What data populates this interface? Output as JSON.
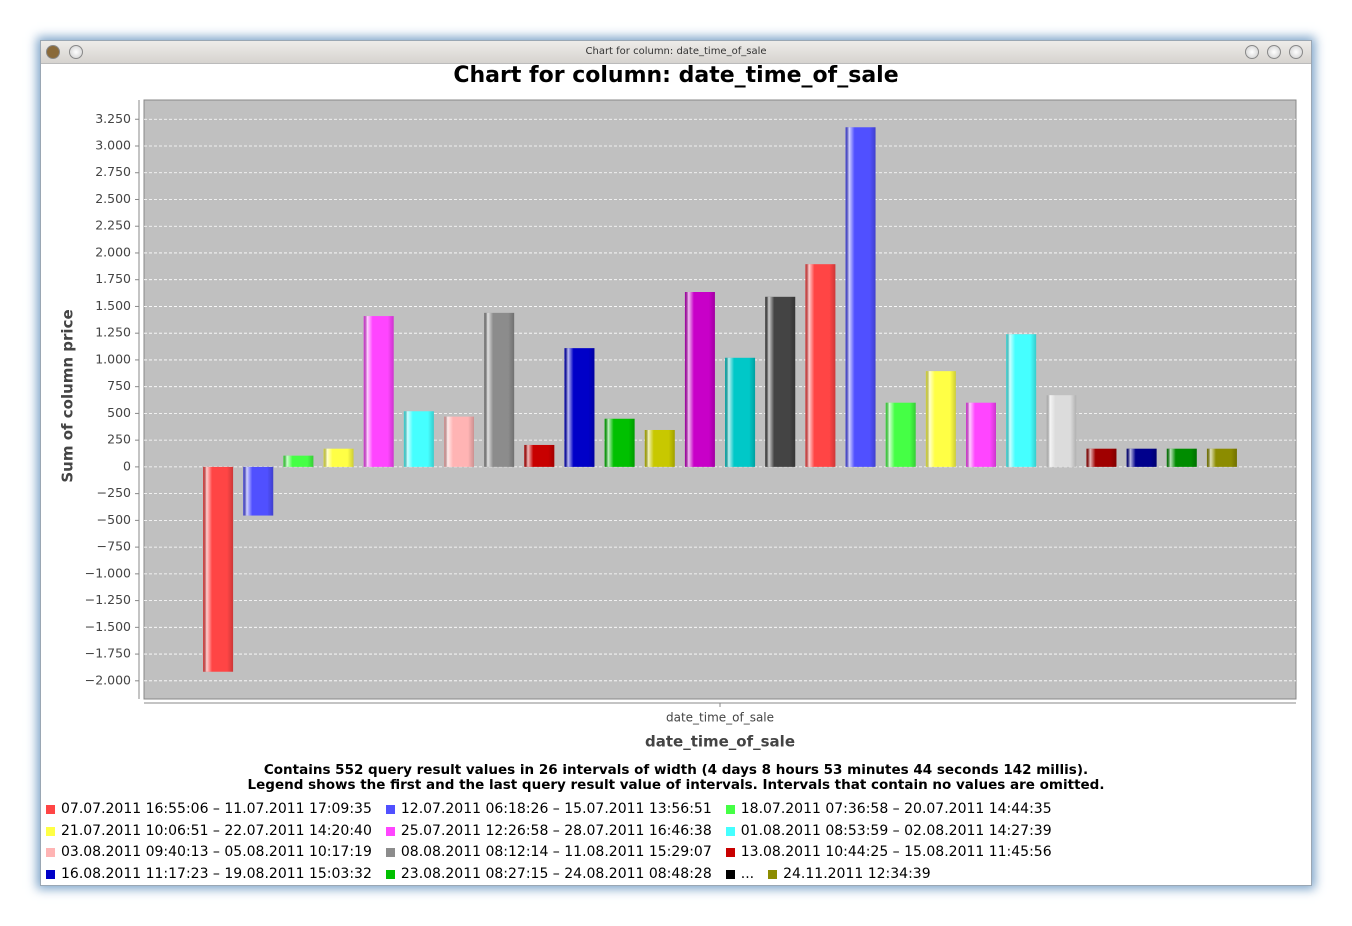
{
  "window": {
    "title": "Chart for column: date_time_of_sale"
  },
  "chart_data": {
    "type": "bar",
    "title": "Chart for column: date_time_of_sale",
    "y_label": "Sum of column price",
    "x_tick_label": "date_time_of_sale",
    "x_label": "date_time_of_sale",
    "categories": [
      null,
      null,
      null,
      null,
      null,
      null,
      null,
      null,
      null,
      null,
      null,
      null,
      null,
      null,
      null,
      null,
      null,
      null,
      null,
      null,
      null,
      null,
      null,
      null,
      null,
      null
    ],
    "values": [
      -1915,
      -455,
      105,
      170,
      1410,
      520,
      470,
      1440,
      205,
      1110,
      450,
      345,
      1635,
      1020,
      1590,
      1895,
      3175,
      600,
      895,
      600,
      1240,
      670,
      170,
      170,
      170,
      170
    ],
    "colors": [
      "#ff4545",
      "#5050ff",
      "#45ff45",
      "#ffff45",
      "#ff45ff",
      "#45ffff",
      "#ffb4b4",
      "#8c8c8c",
      "#c80000",
      "#0000c8",
      "#00c000",
      "#c8c800",
      "#c800c8",
      "#00c8c8",
      "#444444",
      "#ff4545",
      "#5050ff",
      "#45ff45",
      "#ffff45",
      "#ff45ff",
      "#45ffff",
      "#dcdcdc",
      "#a00000",
      "#00008c",
      "#008c00",
      "#8c8c00"
    ],
    "ylim": [
      -2170,
      3430
    ],
    "yticks": [
      {
        "value": 3250,
        "label": "3.250"
      },
      {
        "value": 3000,
        "label": "3.000"
      },
      {
        "value": 2750,
        "label": "2.750"
      },
      {
        "value": 2500,
        "label": "2.500"
      },
      {
        "value": 2250,
        "label": "2.250"
      },
      {
        "value": 2000,
        "label": "2.000"
      },
      {
        "value": 1750,
        "label": "1.750"
      },
      {
        "value": 1500,
        "label": "1.500"
      },
      {
        "value": 1250,
        "label": "1.250"
      },
      {
        "value": 1000,
        "label": "1.000"
      },
      750,
      500,
      250,
      0,
      {
        "value": -250,
        "label": "−250"
      },
      {
        "value": -500,
        "label": "−500"
      },
      {
        "value": -750,
        "label": "−750"
      },
      {
        "value": -1000,
        "label": "−1.000"
      },
      {
        "value": -1250,
        "label": "−1.250"
      },
      {
        "value": -1500,
        "label": "−1.500"
      },
      {
        "value": -1750,
        "label": "−1.750"
      },
      {
        "value": -2000,
        "label": "−2.000"
      }
    ],
    "grid": true,
    "footnote": [
      "Contains 552 query result values in 26 intervals of width (4 days  8 hours  53 minutes  44 seconds  142 millis).",
      "Legend shows the first and the last query result value of intervals. Intervals that contain no values are omitted."
    ],
    "legend": [
      {
        "label": "07.07.2011 16:55:06 – 11.07.2011 17:09:35",
        "color": "#ff4545"
      },
      {
        "label": "12.07.2011 06:18:26 – 15.07.2011 13:56:51",
        "color": "#5050ff"
      },
      {
        "label": "18.07.2011 07:36:58 – 20.07.2011 14:44:35",
        "color": "#45ff45"
      },
      {
        "label": "21.07.2011 10:06:51 – 22.07.2011 14:20:40",
        "color": "#ffff45"
      },
      {
        "label": "25.07.2011 12:26:58 – 28.07.2011 16:46:38",
        "color": "#ff45ff"
      },
      {
        "label": "01.08.2011 08:53:59 – 02.08.2011 14:27:39",
        "color": "#45ffff"
      },
      {
        "label": "03.08.2011 09:40:13 – 05.08.2011 10:17:19",
        "color": "#ffb4b4"
      },
      {
        "label": "08.08.2011 08:12:14 – 11.08.2011 15:29:07",
        "color": "#8c8c8c"
      },
      {
        "label": "13.08.2011 10:44:25 – 15.08.2011 11:45:56",
        "color": "#c80000"
      },
      {
        "label": "16.08.2011 11:17:23 – 19.08.2011 15:03:32",
        "color": "#0000c8"
      },
      {
        "label": "23.08.2011 08:27:15 – 24.08.2011 08:48:28",
        "color": "#00c000"
      },
      {
        "label": "...",
        "color": "#000000"
      },
      {
        "label": "24.11.2011 12:34:39",
        "color": "#8c8c00"
      }
    ]
  }
}
